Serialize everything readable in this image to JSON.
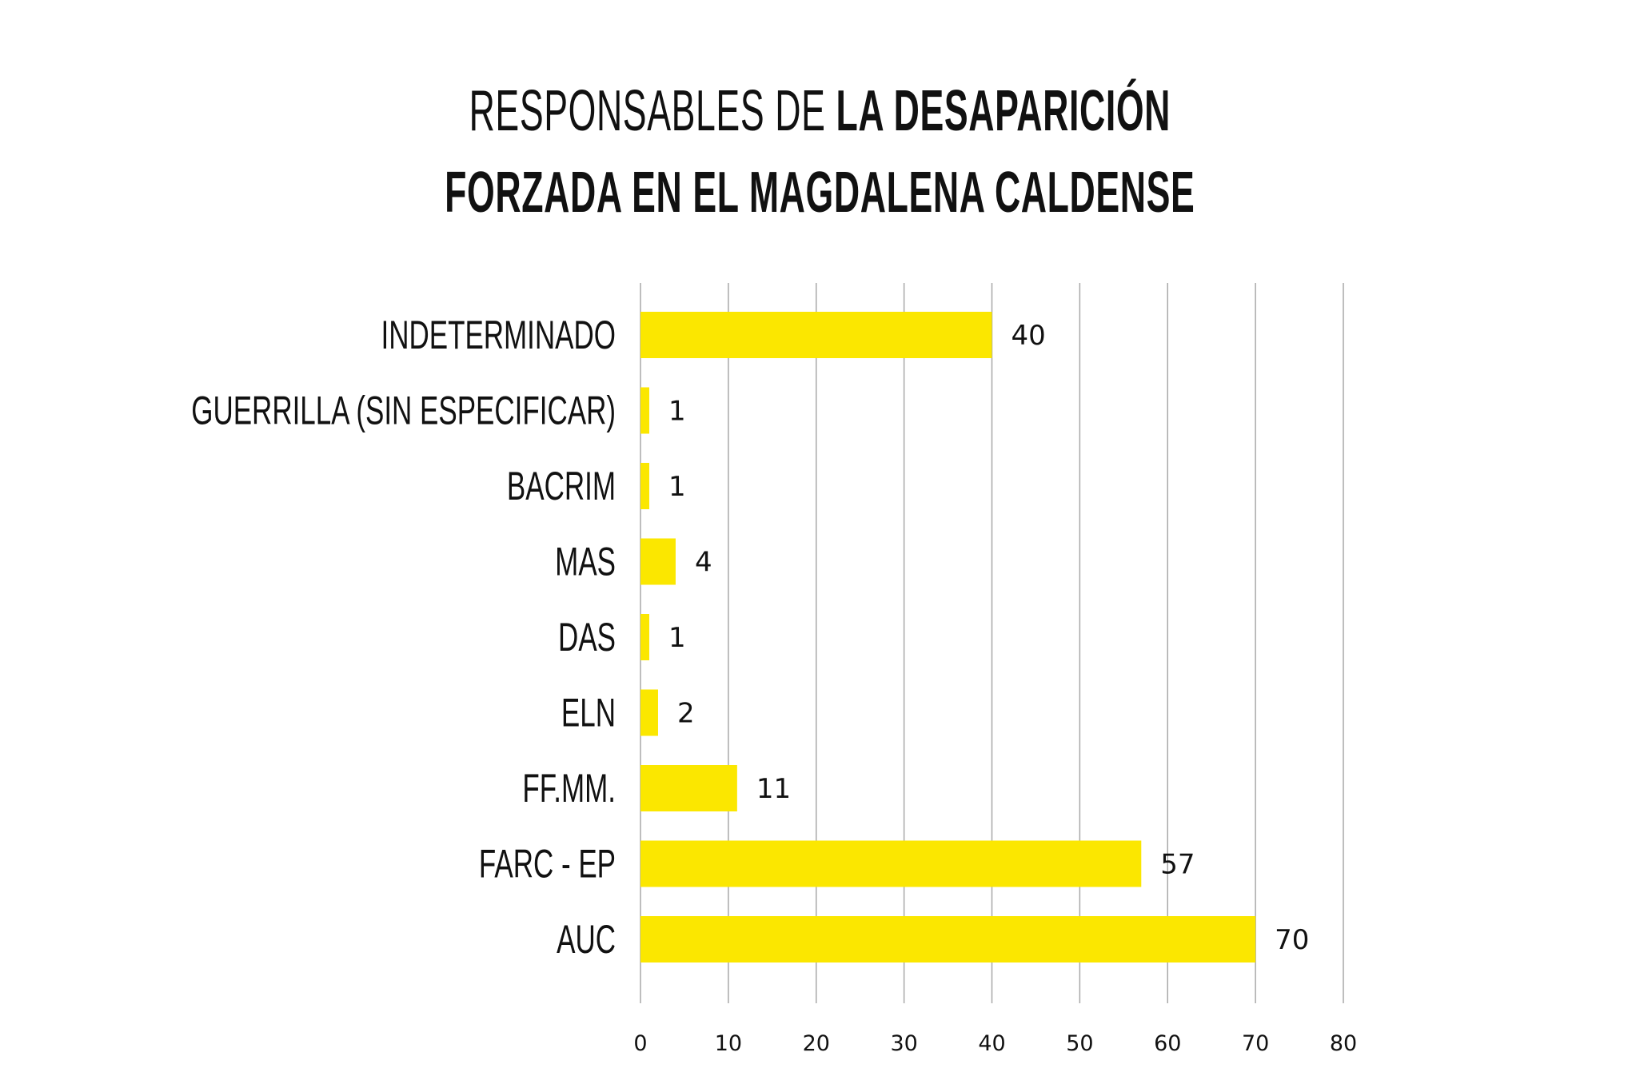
{
  "title": {
    "light": "RESPONSABLES DE ",
    "bold_line1": "LA DESAPARICIÓN",
    "bold_line2": "FORZADA EN EL MAGDALENA CALDENSE"
  },
  "colors": {
    "bar": "#fbe700",
    "grid": "#a8a8a8",
    "text": "#111111"
  },
  "chart_data": {
    "type": "bar",
    "orientation": "horizontal",
    "title": "RESPONSABLES DE LA DESAPARICIÓN FORZADA EN EL MAGDALENA CALDENSE",
    "categories": [
      "INDETERMINADO",
      "GUERRILLA (SIN ESPECIFICAR)",
      "BACRIM",
      "MAS",
      "DAS",
      "ELN",
      "FF.MM.",
      "FARC - EP",
      "AUC"
    ],
    "values": [
      40,
      1,
      1,
      4,
      1,
      2,
      11,
      57,
      70
    ],
    "value_labels": [
      "40",
      "1",
      "1",
      "4",
      "1",
      "2",
      "11",
      "57",
      "70"
    ],
    "xlim": [
      0,
      80
    ],
    "xticks": [
      0,
      10,
      20,
      30,
      40,
      50,
      60,
      70,
      80
    ],
    "grid": true,
    "legend": "none"
  }
}
